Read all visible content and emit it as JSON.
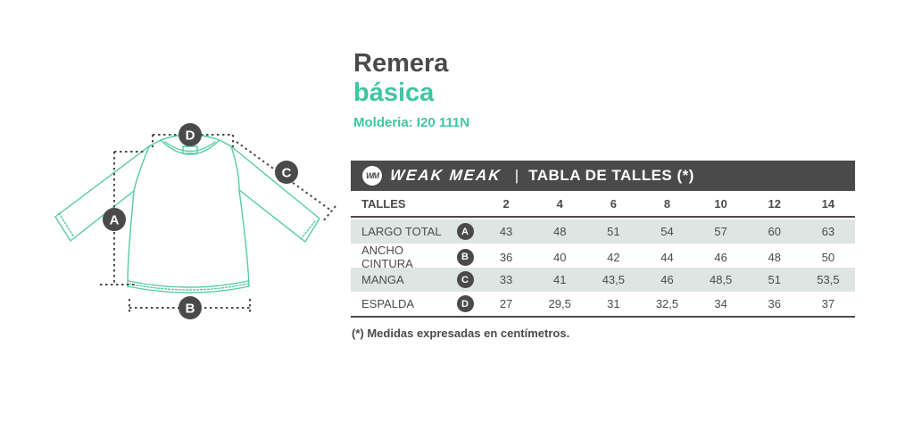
{
  "title": {
    "product": "Remera",
    "variant": "básica",
    "molderia": "Molderia: I20 111N"
  },
  "brand": {
    "logo_text": "WM",
    "name": "WEAK MEAK",
    "separator": "|",
    "table_title": "TABLA DE TALLES (*)"
  },
  "size_table": {
    "header_label": "TALLES",
    "sizes": [
      "2",
      "4",
      "6",
      "8",
      "10",
      "12",
      "14"
    ],
    "rows": [
      {
        "label": "LARGO TOTAL",
        "marker": "A",
        "values": [
          "43",
          "48",
          "51",
          "54",
          "57",
          "60",
          "63"
        ]
      },
      {
        "label": "ANCHO CINTURA",
        "marker": "B",
        "values": [
          "36",
          "40",
          "42",
          "44",
          "46",
          "48",
          "50"
        ]
      },
      {
        "label": "MANGA",
        "marker": "C",
        "values": [
          "33",
          "41",
          "43,5",
          "46",
          "48,5",
          "51",
          "53,5"
        ]
      },
      {
        "label": "ESPALDA",
        "marker": "D",
        "values": [
          "27",
          "29,5",
          "31",
          "32,5",
          "34",
          "36",
          "37"
        ]
      }
    ],
    "footnote": "(*) Medidas expresadas en centímetros."
  },
  "diagram": {
    "markers": [
      "A",
      "B",
      "C",
      "D"
    ]
  },
  "colors": {
    "accent_teal": "#3fc6a2",
    "garment_teal": "#55cba7",
    "dark_gray": "#4a4a4b",
    "row_alt_bg": "#dee6e3"
  }
}
